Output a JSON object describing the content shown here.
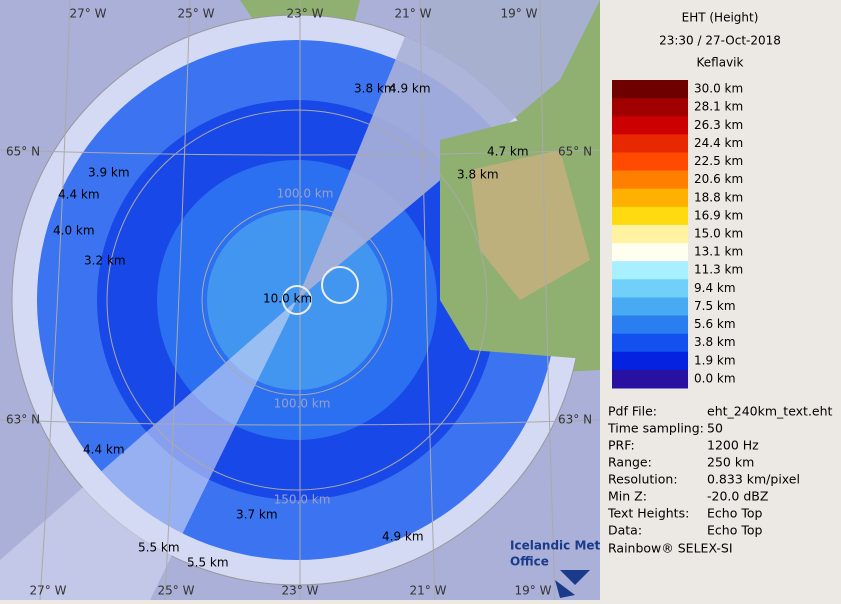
{
  "header": {
    "title": "EHT (Height)",
    "time": "23:30 / 27-Oct-2018",
    "site": "Keflavik"
  },
  "legend": [
    {
      "label": "30.0 km",
      "color": "#6e0000"
    },
    {
      "label": "28.1 km",
      "color": "#a00000"
    },
    {
      "label": "26.3 km",
      "color": "#cc0000"
    },
    {
      "label": "24.4 km",
      "color": "#e82800"
    },
    {
      "label": "22.5 km",
      "color": "#ff4a00"
    },
    {
      "label": "20.6 km",
      "color": "#ff8000"
    },
    {
      "label": "18.8 km",
      "color": "#ffb000"
    },
    {
      "label": "16.9 km",
      "color": "#ffda10"
    },
    {
      "label": "15.0 km",
      "color": "#fff2a0"
    },
    {
      "label": "13.1 km",
      "color": "#fffff0"
    },
    {
      "label": "11.3 km",
      "color": "#a8f0ff"
    },
    {
      "label": "9.4 km",
      "color": "#70d0fa"
    },
    {
      "label": "7.5 km",
      "color": "#48aaf2"
    },
    {
      "label": "5.6 km",
      "color": "#2a7ef0"
    },
    {
      "label": "3.8 km",
      "color": "#1250f0"
    },
    {
      "label": "1.9 km",
      "color": "#0422e0"
    },
    {
      "label": "0.0 km",
      "color": "#2810a0"
    }
  ],
  "info": [
    [
      "Pdf File:",
      "eht_240km_text.eht"
    ],
    [
      "Time sampling:",
      "50"
    ],
    [
      "PRF:",
      "1200 Hz"
    ],
    [
      "Range:",
      "250 km"
    ],
    [
      "Resolution:",
      "0.833 km/pixel"
    ],
    [
      "Min Z:",
      "-20.0 dBZ"
    ],
    [
      "Text Heights:",
      "Echo Top"
    ],
    [
      "Data:",
      "Echo Top"
    ]
  ],
  "footer": "Rainbow® SELEX-SI",
  "logo": [
    "Icelandic Met",
    "Office"
  ],
  "map": {
    "longitudes_top": [
      "27° W",
      "25° W",
      "23° W",
      "21° W",
      "19° W"
    ],
    "longitudes_bottom": [
      "27° W",
      "25° W",
      "23° W",
      "21° W",
      "19° W"
    ],
    "latitudes_left": [
      "65° N",
      "63° N"
    ],
    "latitudes_right": [
      "65° N",
      "63° N"
    ],
    "rings": [
      "100.0 km",
      "100.0 km",
      "150.0 km"
    ],
    "echo_tops": [
      "3.8 km",
      "4.9 km",
      "4.7 km",
      "3.8 km",
      "3.9 km",
      "4.4 km",
      "4.0 km",
      "3.2 km",
      "10.0 km",
      "4.4 km",
      "3.7 km",
      "4.9 km",
      "5.5 km",
      "5.5 km"
    ]
  }
}
